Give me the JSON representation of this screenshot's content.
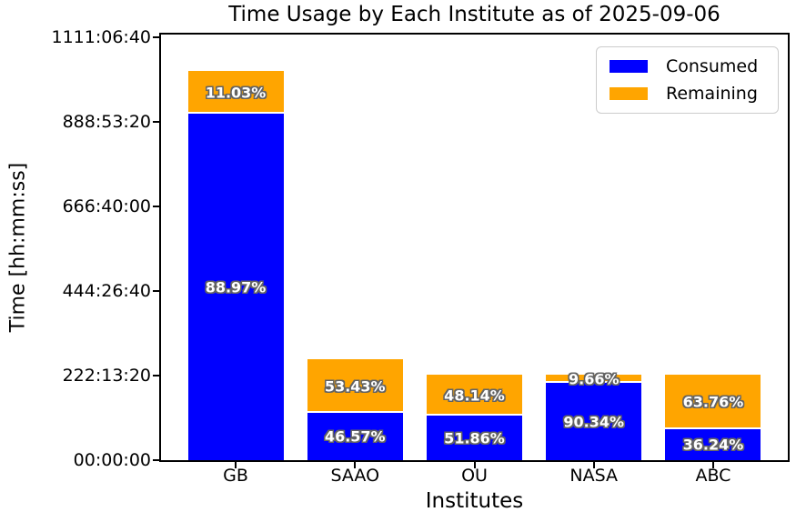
{
  "chart_data": {
    "type": "bar",
    "stacked": true,
    "title": "Time Usage by Each Institute as of 2025-09-06",
    "xlabel": "Institutes",
    "ylabel": "Time [hh:mm:ss]",
    "categories": [
      "GB",
      "SAAO",
      "OU",
      "NASA",
      "ABC"
    ],
    "totals_seconds_est": [
      3680000,
      954000,
      806400,
      806400,
      806400
    ],
    "series": [
      {
        "name": "Consumed",
        "color": "#0000ff",
        "percent": [
          88.97,
          46.57,
          51.86,
          90.34,
          36.24
        ],
        "labels": [
          "88.97%",
          "46.57%",
          "51.86%",
          "90.34%",
          "36.24%"
        ]
      },
      {
        "name": "Remaining",
        "color": "#ffa500",
        "percent": [
          11.03,
          53.43,
          48.14,
          9.66,
          63.76
        ],
        "labels": [
          "11.03%",
          "53.43%",
          "48.14%",
          "9.66%",
          "63.76%"
        ]
      }
    ],
    "yticks": [
      {
        "seconds": 0,
        "label": "00:00:00"
      },
      {
        "seconds": 800000,
        "label": "222:13:20"
      },
      {
        "seconds": 1600000,
        "label": "444:26:40"
      },
      {
        "seconds": 2400000,
        "label": "666:40:00"
      },
      {
        "seconds": 3200000,
        "label": "888:53:20"
      },
      {
        "seconds": 4000000,
        "label": "1111:06:40"
      }
    ],
    "ylim_seconds": [
      0,
      4025806
    ],
    "grid": false,
    "legend": {
      "position": "upper right"
    }
  },
  "colors": {
    "consumed": "#0000ff",
    "remaining": "#ffa500",
    "bar_label_text": "#ffffff",
    "bar_label_outline": "#636363",
    "axis": "#000000",
    "background": "#ffffff",
    "legend_border": "#cccccc"
  }
}
